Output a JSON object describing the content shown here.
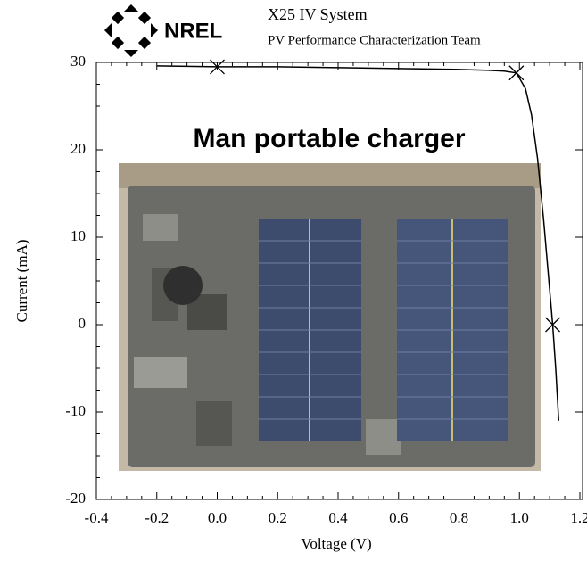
{
  "header": {
    "logo": "NREL",
    "system": "X25 IV System",
    "team": "PV Performance Characterization Team"
  },
  "chart_data": {
    "type": "line",
    "title": "Man portable charger",
    "x_label": "Voltage (V)",
    "y_label": "Current (mA)",
    "xlim": [
      -0.4,
      1.2
    ],
    "ylim": [
      -20,
      30
    ],
    "xticks": [
      -0.4,
      -0.2,
      {
        "value": 0,
        "label": "0.0"
      },
      0.2,
      0.4,
      0.6,
      0.8,
      {
        "value": 1,
        "label": "1.0"
      },
      1.2
    ],
    "yticks": [
      -20,
      -10,
      0,
      10,
      20,
      30
    ],
    "color": "#000000",
    "x": [
      -0.2,
      0,
      0.2,
      0.4,
      0.6,
      0.8,
      0.9,
      0.95,
      0.99,
      1.02,
      1.04,
      1.06,
      1.08,
      1.1,
      1.11,
      1.12,
      1.13
    ],
    "values": [
      29.6,
      29.5,
      29.5,
      29.4,
      29.3,
      29.2,
      29.1,
      29.0,
      28.8,
      27,
      24,
      19,
      12,
      4,
      0,
      -5,
      -11
    ],
    "markers": {
      "x": [
        0,
        0.99,
        1.11
      ],
      "values": [
        29.5,
        28.8,
        0
      ]
    }
  }
}
